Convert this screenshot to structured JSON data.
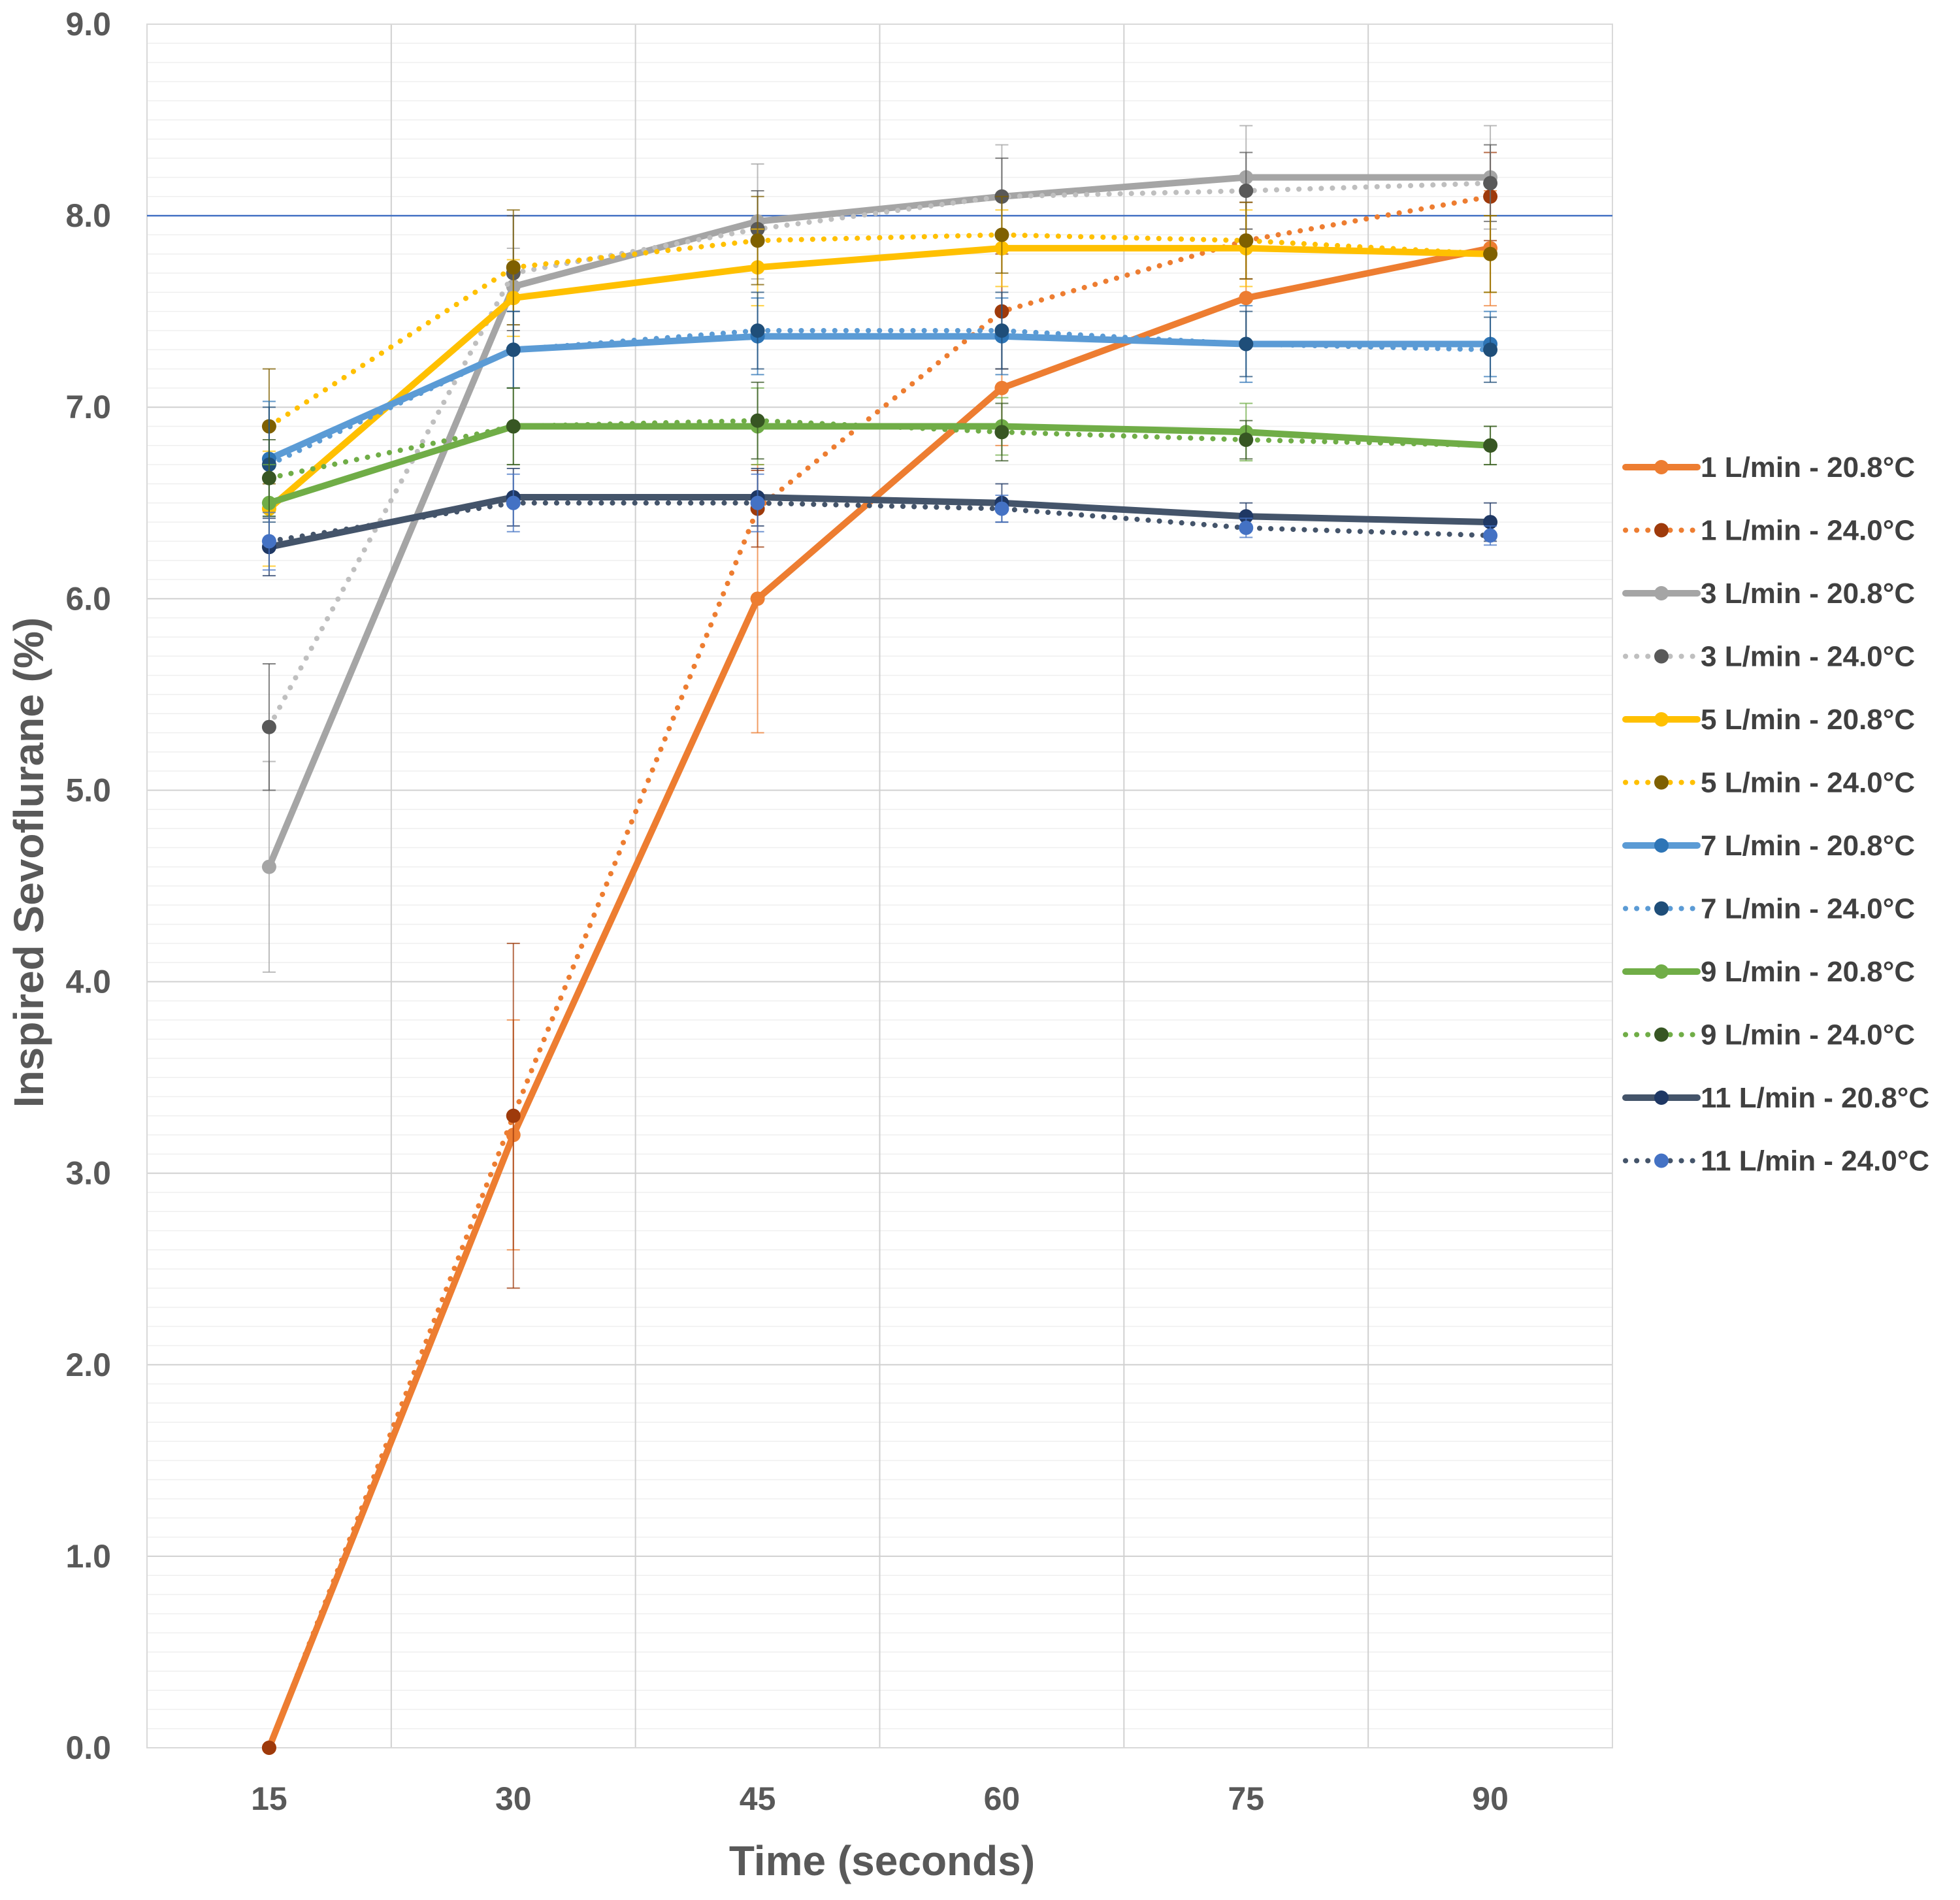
{
  "chart_data": {
    "type": "line",
    "title": "",
    "xlabel": "Time (seconds)",
    "ylabel": "Inspired Sevoflurane (%)",
    "x": [
      15,
      30,
      45,
      60,
      75,
      90
    ],
    "x_tick_labels": [
      "15",
      "30",
      "45",
      "60",
      "75",
      "90"
    ],
    "ylim": [
      0,
      9
    ],
    "y_tick_labels": [
      "0.0",
      "1.0",
      "2.0",
      "3.0",
      "4.0",
      "5.0",
      "6.0",
      "7.0",
      "8.0",
      "9.0"
    ],
    "reference_line": {
      "y": 8.0,
      "color": "#4472C4"
    },
    "grid": true,
    "legend_position": "right",
    "series": [
      {
        "name": "1 L/min - 20.8°C",
        "style": "solid",
        "line_color": "#ED7D31",
        "marker_color": "#ED7D31",
        "values": [
          0.0,
          3.2,
          6.0,
          7.1,
          7.57,
          7.83
        ],
        "errors": [
          0.0,
          0.6,
          0.7,
          0.3,
          0.25,
          0.3
        ]
      },
      {
        "name": "1 L/min - 24.0°C",
        "style": "dotted",
        "line_color": "#ED7D31",
        "marker_color": "#9E3A0B",
        "values": [
          0.0,
          3.3,
          6.47,
          7.5,
          7.87,
          8.1
        ],
        "errors": [
          0.0,
          0.9,
          0.2,
          0.3,
          0.2,
          0.23
        ]
      },
      {
        "name": "3 L/min - 20.8°C",
        "style": "solid",
        "line_color": "#A5A5A5",
        "marker_color": "#A5A5A5",
        "values": [
          4.6,
          7.63,
          7.97,
          8.1,
          8.2,
          8.2
        ],
        "errors": [
          0.55,
          0.2,
          0.3,
          0.27,
          0.27,
          0.27
        ]
      },
      {
        "name": "3 L/min - 24.0°C",
        "style": "dotted",
        "line_color": "#BFBFBF",
        "marker_color": "#595959",
        "values": [
          5.33,
          7.7,
          7.93,
          8.1,
          8.13,
          8.17
        ],
        "errors": [
          0.33,
          0.3,
          0.2,
          0.2,
          0.2,
          0.2
        ]
      },
      {
        "name": "5 L/min - 20.8°C",
        "style": "solid",
        "line_color": "#FFC000",
        "marker_color": "#FFC000",
        "values": [
          6.47,
          7.57,
          7.73,
          7.83,
          7.83,
          7.8
        ],
        "errors": [
          0.3,
          0.2,
          0.2,
          0.2,
          0.2,
          0.2
        ]
      },
      {
        "name": "5 L/min - 24.0°C",
        "style": "dotted",
        "line_color": "#FFC000",
        "marker_color": "#7F6000",
        "values": [
          6.9,
          7.73,
          7.87,
          7.9,
          7.87,
          7.8
        ],
        "errors": [
          0.3,
          0.3,
          0.23,
          0.2,
          0.2,
          0.2
        ]
      },
      {
        "name": "7 L/min - 20.8°C",
        "style": "solid",
        "line_color": "#5B9BD5",
        "marker_color": "#2E75B6",
        "values": [
          6.73,
          7.3,
          7.37,
          7.37,
          7.33,
          7.33
        ],
        "errors": [
          0.3,
          0.2,
          0.2,
          0.2,
          0.2,
          0.17
        ]
      },
      {
        "name": "7 L/min - 24.0°C",
        "style": "dotted",
        "line_color": "#5B9BD5",
        "marker_color": "#1F4E79",
        "values": [
          6.7,
          7.3,
          7.4,
          7.4,
          7.33,
          7.3
        ],
        "errors": [
          0.3,
          0.2,
          0.2,
          0.2,
          0.17,
          0.17
        ]
      },
      {
        "name": "9 L/min - 20.8°C",
        "style": "solid",
        "line_color": "#70AD47",
        "marker_color": "#70AD47",
        "values": [
          6.5,
          6.9,
          6.9,
          6.9,
          6.87,
          6.8
        ],
        "errors": [
          0.2,
          0.2,
          0.2,
          0.15,
          0.15,
          0.1
        ]
      },
      {
        "name": "9 L/min - 24.0°C",
        "style": "dotted",
        "line_color": "#70AD47",
        "marker_color": "#375623",
        "values": [
          6.63,
          6.9,
          6.93,
          6.87,
          6.83,
          6.8
        ],
        "errors": [
          0.2,
          0.2,
          0.2,
          0.15,
          0.1,
          0.1
        ]
      },
      {
        "name": "11 L/min - 20.8°C",
        "style": "solid",
        "line_color": "#44546A",
        "marker_color": "#1F3864",
        "values": [
          6.27,
          6.53,
          6.53,
          6.5,
          6.43,
          6.4
        ],
        "errors": [
          0.15,
          0.15,
          0.15,
          0.1,
          0.07,
          0.1
        ]
      },
      {
        "name": "11 L/min - 24.0°C",
        "style": "dotted",
        "line_color": "#44546A",
        "marker_color": "#4472C4",
        "values": [
          6.3,
          6.5,
          6.5,
          6.47,
          6.37,
          6.33
        ],
        "errors": [
          0.15,
          0.15,
          0.15,
          0.07,
          0.05,
          0.05
        ]
      }
    ]
  }
}
